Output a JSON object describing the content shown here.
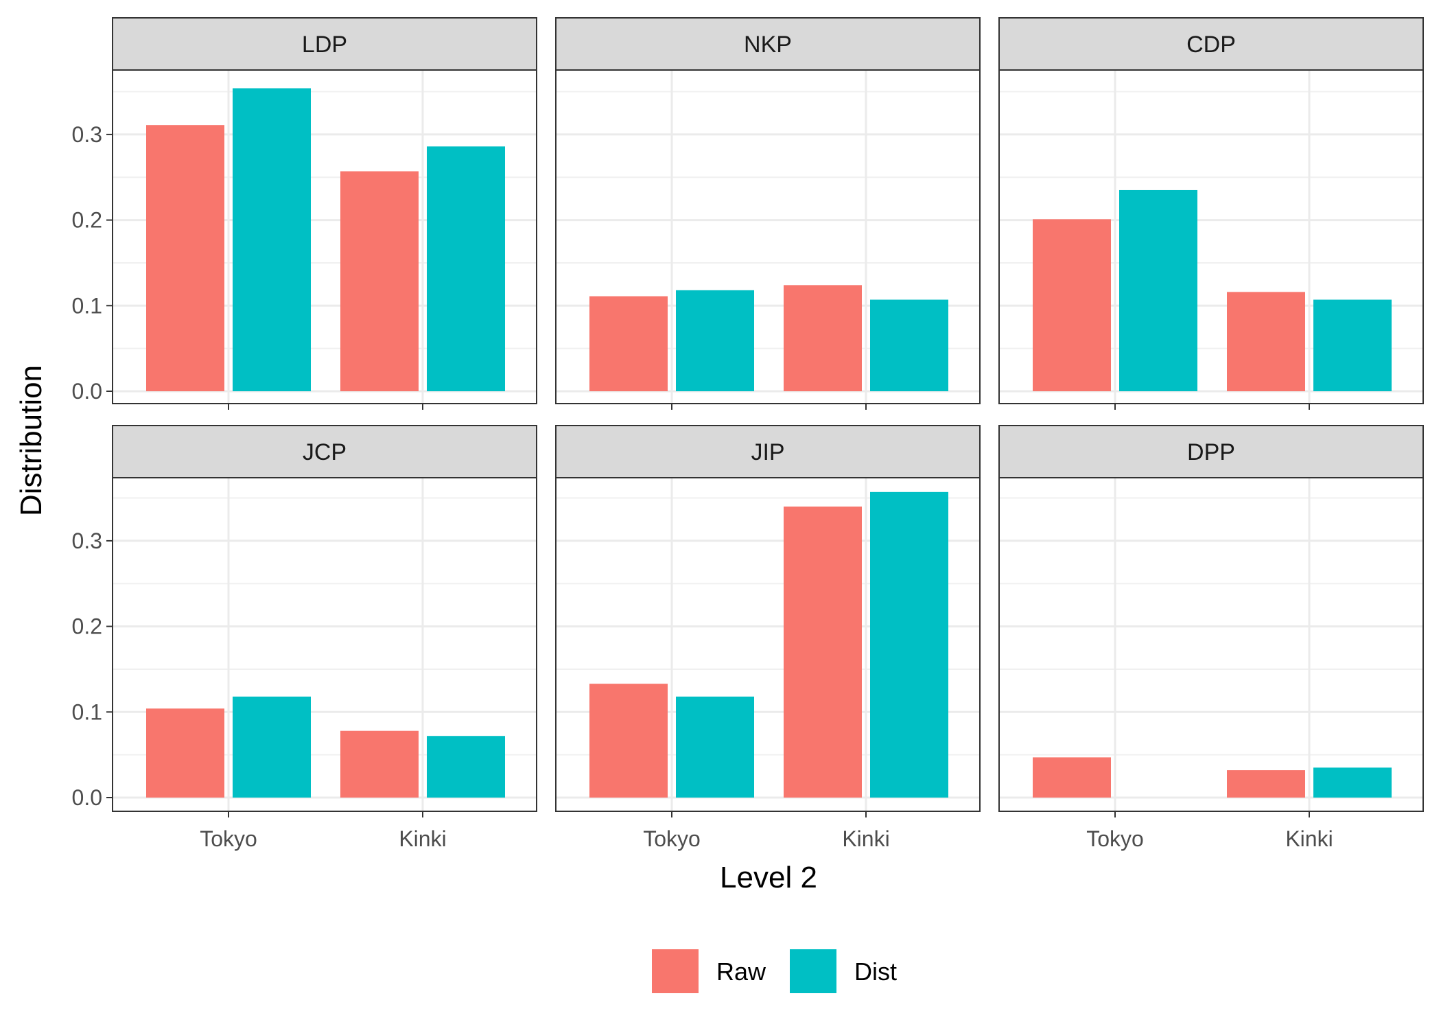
{
  "chart_data": {
    "type": "bar",
    "xlabel": "Level 2",
    "ylabel": "Distribution",
    "ylim": [
      0,
      0.39
    ],
    "yticks": [
      0.0,
      0.1,
      0.2,
      0.3
    ],
    "ytick_labels": [
      "0.0",
      "0.1",
      "0.2",
      "0.3"
    ],
    "categories": [
      "Tokyo",
      "Kinki"
    ],
    "grid": true,
    "legend": {
      "position": "bottom",
      "entries": [
        {
          "name": "Raw",
          "color": "#F8766D"
        },
        {
          "name": "Dist",
          "color": "#00BFC4"
        }
      ]
    },
    "facets": [
      {
        "title": "LDP",
        "series": [
          {
            "name": "Raw",
            "values": [
              0.311,
              0.257
            ]
          },
          {
            "name": "Dist",
            "values": [
              0.354,
              0.286
            ]
          }
        ]
      },
      {
        "title": "NKP",
        "series": [
          {
            "name": "Raw",
            "values": [
              0.111,
              0.124
            ]
          },
          {
            "name": "Dist",
            "values": [
              0.118,
              0.107
            ]
          }
        ]
      },
      {
        "title": "CDP",
        "series": [
          {
            "name": "Raw",
            "values": [
              0.201,
              0.116
            ]
          },
          {
            "name": "Dist",
            "values": [
              0.235,
              0.107
            ]
          }
        ]
      },
      {
        "title": "JCP",
        "series": [
          {
            "name": "Raw",
            "values": [
              0.104,
              0.078
            ]
          },
          {
            "name": "Dist",
            "values": [
              0.118,
              0.072
            ]
          }
        ]
      },
      {
        "title": "JIP",
        "series": [
          {
            "name": "Raw",
            "values": [
              0.133,
              0.34
            ]
          },
          {
            "name": "Dist",
            "values": [
              0.118,
              0.357
            ]
          }
        ]
      },
      {
        "title": "DPP",
        "series": [
          {
            "name": "Raw",
            "values": [
              0.047,
              0.032
            ]
          },
          {
            "name": "Dist",
            "values": [
              0.0,
              0.035
            ]
          }
        ]
      }
    ]
  }
}
